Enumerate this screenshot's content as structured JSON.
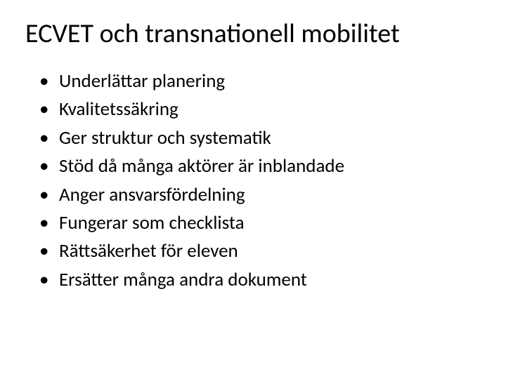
{
  "title": "ECVET och transnationell mobilitet",
  "bullets": [
    "Underlättar planering",
    "Kvalitetssäkring",
    "Ger struktur och systematik",
    "Stöd då många aktörer är inblandade",
    "Anger ansvarsfördelning",
    "Fungerar som checklista",
    "Rättsäkerhet för eleven",
    "Ersätter många andra dokument"
  ],
  "colors": {
    "background": "#ffffff",
    "text": "#000000"
  },
  "typography": {
    "title_fontsize_pt": 28,
    "body_fontsize_pt": 20,
    "font_family": "Calibri"
  }
}
